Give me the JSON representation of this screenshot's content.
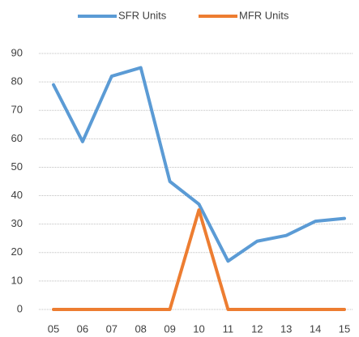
{
  "chart_data": {
    "type": "line",
    "categories": [
      "05",
      "06",
      "07",
      "08",
      "09",
      "10",
      "11",
      "12",
      "13",
      "14",
      "15"
    ],
    "series": [
      {
        "name": "SFR Units",
        "color": "#5b9bd5",
        "values": [
          79,
          59,
          82,
          85,
          45,
          37,
          17,
          24,
          26,
          31,
          32
        ]
      },
      {
        "name": "MFR Units",
        "color": "#ed7d31",
        "values": [
          0,
          0,
          0,
          0,
          0,
          35,
          0,
          0,
          0,
          0,
          0
        ]
      }
    ],
    "ylim": [
      0,
      90
    ],
    "yticks": [
      0,
      10,
      20,
      30,
      40,
      50,
      60,
      70,
      80,
      90
    ],
    "grid": true,
    "legend": "top"
  }
}
